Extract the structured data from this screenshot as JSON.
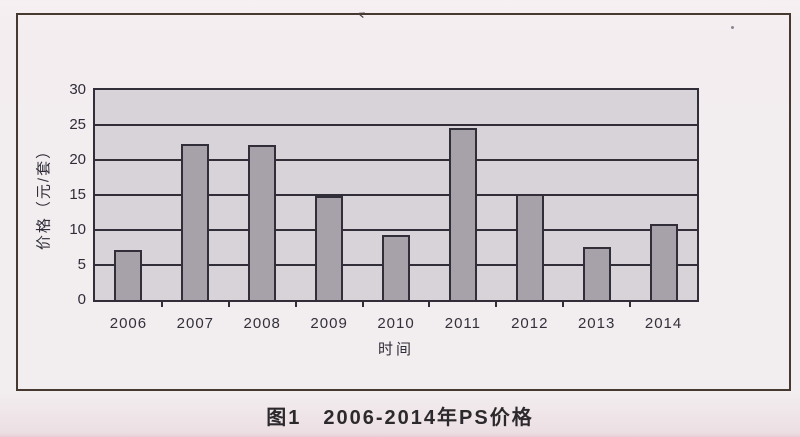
{
  "page": {
    "caption": "图1　2006-2014年PS价格"
  },
  "chart_data": {
    "type": "bar",
    "categories": [
      "2006",
      "2007",
      "2008",
      "2009",
      "2010",
      "2011",
      "2012",
      "2013",
      "2014"
    ],
    "values": [
      7.1,
      22.3,
      22.1,
      14.8,
      9.3,
      24.5,
      15.1,
      7.5,
      10.8
    ],
    "title": "",
    "xlabel": "时间",
    "ylabel": "价格（元/套）",
    "ylim": [
      0,
      30
    ],
    "ytick_step": 5,
    "yticks": [
      0,
      5,
      10,
      15,
      20,
      25,
      30
    ],
    "grid": "horizontal",
    "legend": "none",
    "bar_color": "#a7a1a9",
    "plot_bg": "#d7d3d9",
    "line_color": "#312e3a"
  },
  "colors": {
    "paper": "#f2edef",
    "box_border": "#46392f",
    "text": "#2f2d38"
  }
}
